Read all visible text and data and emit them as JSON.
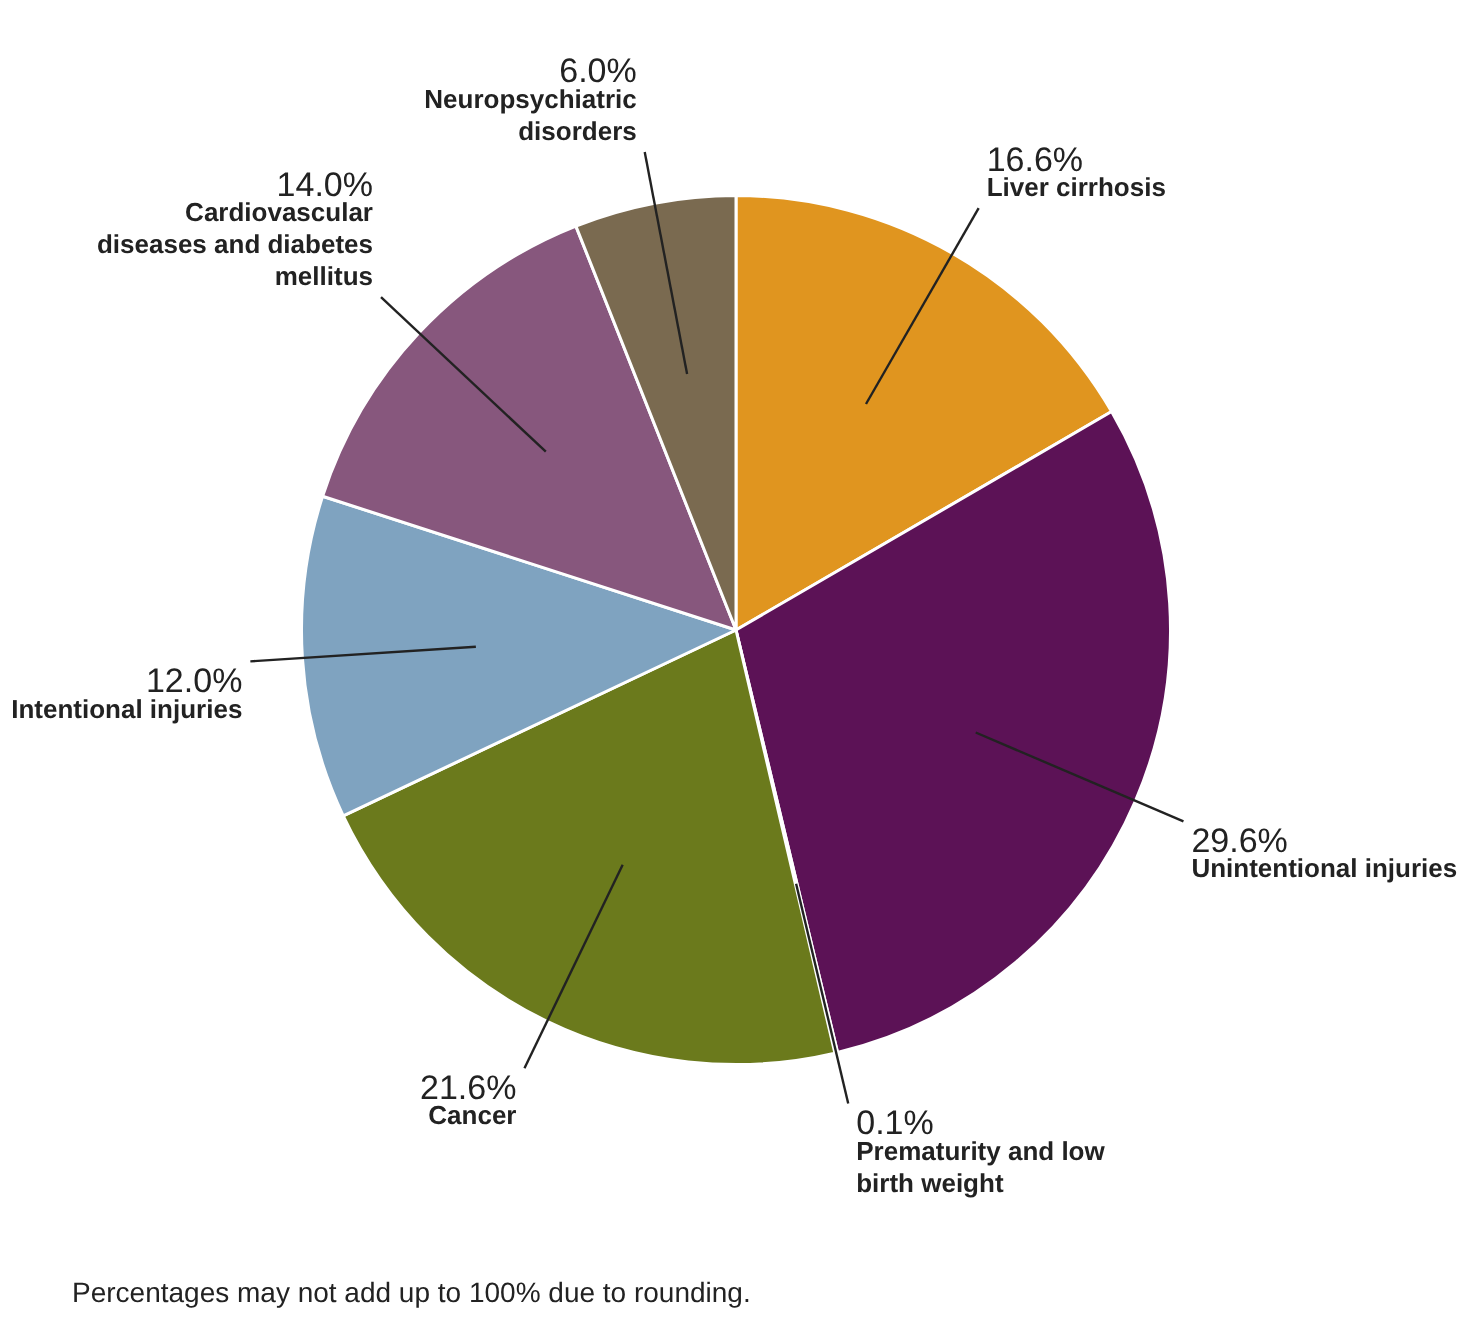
{
  "chart_data": {
    "type": "pie",
    "categories": [
      "Liver cirrhosis",
      "Unintentional injuries",
      "Prematurity and low birth weight",
      "Cancer",
      "Intentional injuries",
      "Cardiovascular diseases and diabetes mellitus",
      "Neuropsychiatric disorders"
    ],
    "values": [
      16.6,
      29.6,
      0.1,
      21.6,
      12.0,
      14.0,
      6.0
    ],
    "value_labels": [
      "16.6%",
      "29.6%",
      "0.1%",
      "21.6%",
      "12.0%",
      "14.0%",
      "6.0%"
    ],
    "colors": [
      "#e0951f",
      "#5c1256",
      "#a8a8a8",
      "#6b7a1c",
      "#7fa3c0",
      "#87577d",
      "#7a6a50"
    ],
    "legend": false,
    "annotations": [
      "Percentages may not add up to 100% due to rounding."
    ]
  }
}
